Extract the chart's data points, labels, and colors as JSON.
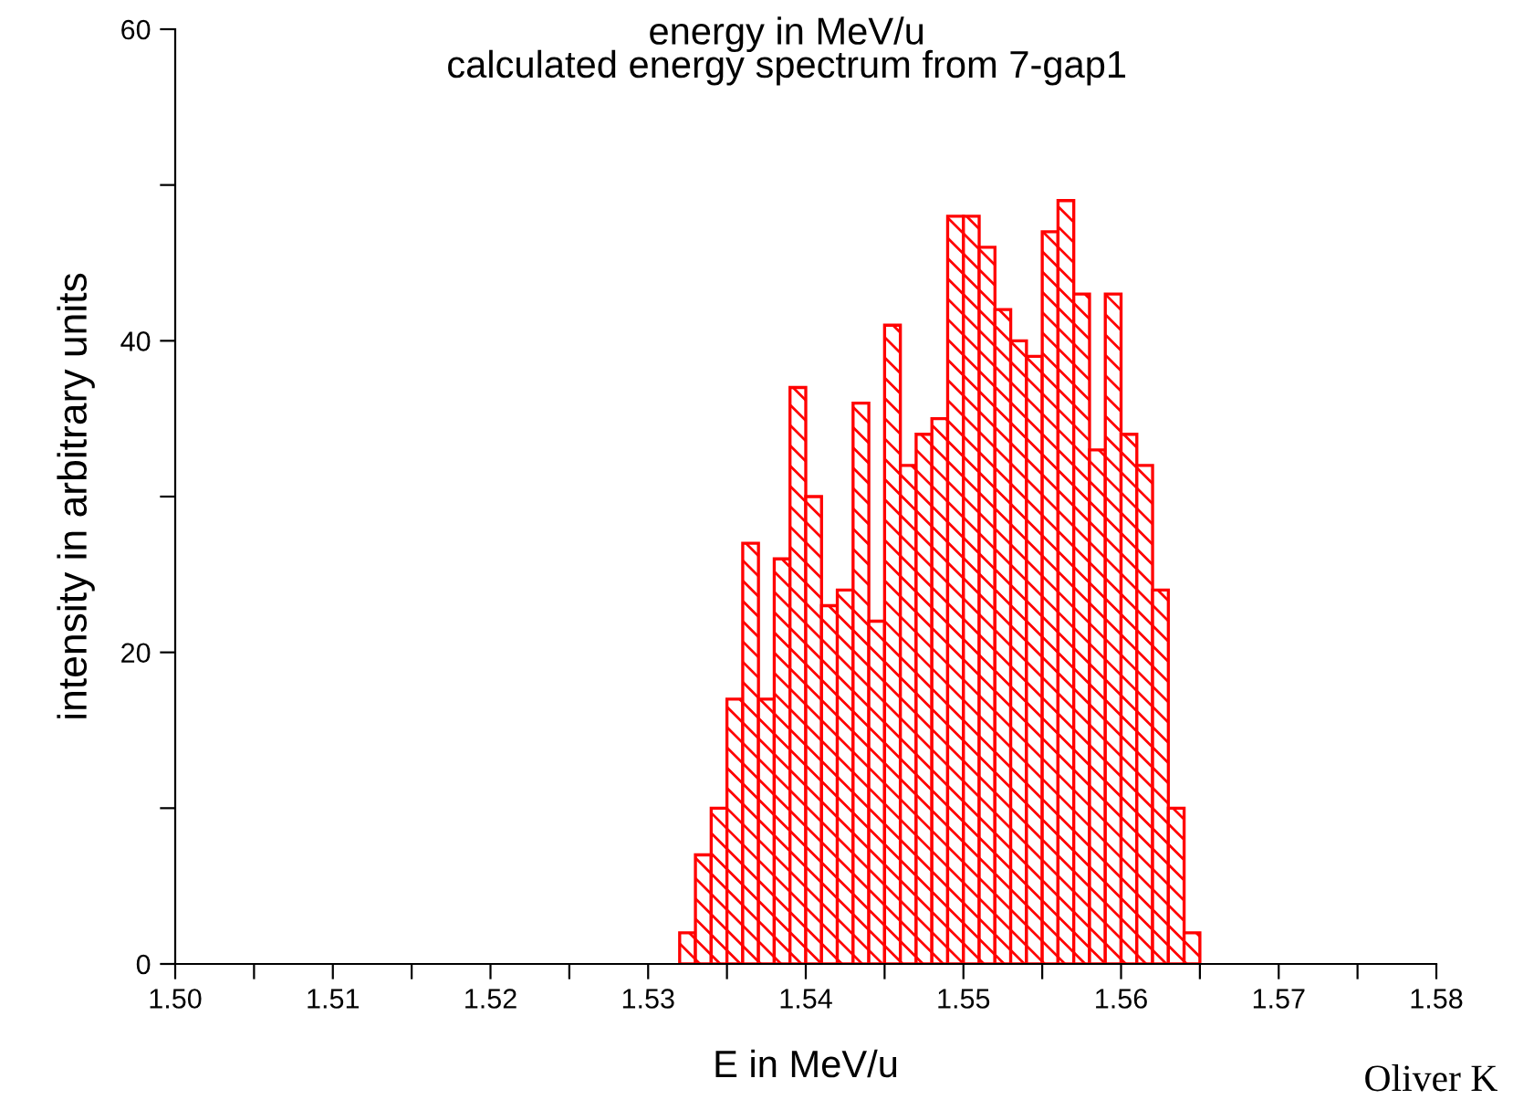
{
  "chart_data": {
    "type": "histogram",
    "title": "energy in MeV/u",
    "subtitle": "calculated energy spectrum from 7-gap1",
    "xlabel": "E in MeV/u",
    "ylabel": "intensity in arbitrary units",
    "bins": [
      1.532,
      1.533,
      1.534,
      1.535,
      1.536,
      1.537,
      1.538,
      1.539,
      1.54,
      1.541,
      1.542,
      1.543,
      1.544,
      1.545,
      1.546,
      1.547,
      1.548,
      1.549,
      1.55,
      1.551,
      1.552,
      1.553,
      1.554,
      1.555,
      1.556,
      1.557,
      1.558,
      1.559,
      1.56,
      1.561,
      1.562,
      1.563,
      1.564,
      1.565
    ],
    "values": [
      2,
      7,
      10,
      17,
      27,
      17,
      26,
      37,
      30,
      23,
      24,
      36,
      22,
      41,
      32,
      34,
      35,
      48,
      48,
      46,
      42,
      40,
      39,
      47,
      49,
      43,
      33,
      43,
      34,
      32,
      24,
      10,
      2
    ],
    "color": "#ff0000",
    "xlim": [
      1.5,
      1.58
    ],
    "xticks": [
      {
        "value": 1.5,
        "label": "1.50"
      },
      {
        "value": 1.505,
        "label": null
      },
      {
        "value": 1.51,
        "label": "1.51"
      },
      {
        "value": 1.515,
        "label": null
      },
      {
        "value": 1.52,
        "label": "1.52"
      },
      {
        "value": 1.525,
        "label": null
      },
      {
        "value": 1.53,
        "label": "1.53"
      },
      {
        "value": 1.535,
        "label": null
      },
      {
        "value": 1.54,
        "label": "1.54"
      },
      {
        "value": 1.545,
        "label": null
      },
      {
        "value": 1.55,
        "label": "1.55"
      },
      {
        "value": 1.555,
        "label": null
      },
      {
        "value": 1.56,
        "label": "1.56"
      },
      {
        "value": 1.565,
        "label": null
      },
      {
        "value": 1.57,
        "label": "1.57"
      },
      {
        "value": 1.575,
        "label": null
      },
      {
        "value": 1.58,
        "label": "1.58"
      }
    ],
    "ylim": [
      0,
      60
    ],
    "yticks": [
      0,
      {
        "value": 10,
        "label": null
      },
      20,
      {
        "value": 30,
        "label": null
      },
      40,
      {
        "value": 50,
        "label": null
      },
      60
    ],
    "grid": false,
    "legend": false,
    "annotations": [
      "Oliver K"
    ]
  }
}
